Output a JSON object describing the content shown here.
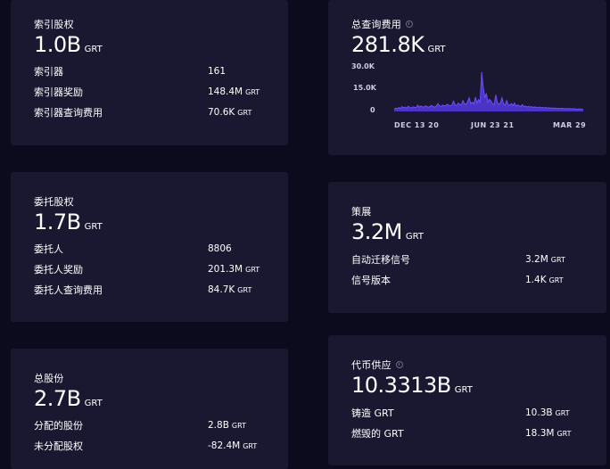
{
  "indexer_stake": {
    "title": "索引股权",
    "value": "1.0B",
    "unit": "GRT",
    "rows": [
      {
        "label": "索引器",
        "value": "161",
        "unit": ""
      },
      {
        "label": "索引器奖励",
        "value": "148.4M",
        "unit": "GRT"
      },
      {
        "label": "索引器查询费用",
        "value": "70.6K",
        "unit": "GRT"
      }
    ]
  },
  "delegator_stake": {
    "title": "委托股权",
    "value": "1.7B",
    "unit": "GRT",
    "rows": [
      {
        "label": "委托人",
        "value": "8806",
        "unit": ""
      },
      {
        "label": "委托人奖励",
        "value": "201.3M",
        "unit": "GRT"
      },
      {
        "label": "委托人查询费用",
        "value": "84.7K",
        "unit": "GRT"
      }
    ]
  },
  "total_stake": {
    "title": "总股份",
    "value": "2.7B",
    "unit": "GRT",
    "rows": [
      {
        "label": "分配的股份",
        "value": "2.8B",
        "unit": "GRT"
      },
      {
        "label": "未分配股权",
        "value": "-82.4M",
        "unit": "GRT"
      }
    ]
  },
  "query_fees": {
    "title": "总查询费用",
    "info_icon": "info-icon",
    "value": "281.8K",
    "unit": "GRT",
    "chart_data": {
      "type": "area",
      "y_ticks": [
        "30.0K",
        "15.0K",
        "0"
      ],
      "x_ticks": [
        "DEC 13 20",
        "JUN 23 21",
        "MAR 29"
      ],
      "ylim": [
        0,
        30000
      ],
      "color": "#6f4cff",
      "values": [
        1500,
        2200,
        1800,
        2600,
        2000,
        3200,
        2400,
        2900,
        2100,
        3500,
        2600,
        2300,
        3000,
        2700,
        2500,
        4200,
        2800,
        3600,
        3100,
        2900,
        3800,
        3300,
        2700,
        3400,
        4000,
        3200,
        2900,
        3600,
        5200,
        3800,
        3100,
        4300,
        3600,
        3900,
        4800,
        4100,
        3700,
        4500,
        6800,
        4200,
        3900,
        5600,
        4700,
        4300,
        7200,
        5100,
        4600,
        6400,
        9000,
        5200,
        6200,
        4800,
        9500,
        5600,
        7800,
        6000,
        26000,
        16000,
        9000,
        12000,
        6000,
        8000,
        6800,
        5200,
        4300,
        11000,
        6200,
        4600,
        5800,
        9000,
        5000,
        4200,
        7200,
        4600,
        4000,
        5200,
        3800,
        5600,
        3400,
        4300,
        3800,
        3100,
        4500,
        3200,
        3600,
        2900,
        3400,
        2800,
        3200,
        2600,
        3000,
        2700,
        2500,
        2900,
        2400,
        2700,
        2300,
        2600,
        2200,
        2500,
        2100,
        2400,
        2000,
        2300,
        1900,
        2200,
        1800,
        2100,
        2000,
        1900,
        1700,
        2000,
        1800,
        1900,
        1600,
        1800,
        1700,
        1500,
        1700,
        1600,
        1500,
        1400
      ]
    }
  },
  "curation": {
    "title": "策展",
    "value": "3.2M",
    "unit": "GRT",
    "rows": [
      {
        "label": "自动迁移信号",
        "value": "3.2M",
        "unit": "GRT"
      },
      {
        "label": "信号版本",
        "value": "1.4K",
        "unit": "GRT"
      }
    ]
  },
  "token_supply": {
    "title": "代币供应",
    "info_icon": "info-icon",
    "value": "10.3313B",
    "unit": "GRT",
    "rows": [
      {
        "label": "铸造 GRT",
        "value": "10.3B",
        "unit": "GRT"
      },
      {
        "label": "燃毁的 GRT",
        "value": "18.3M",
        "unit": "GRT"
      }
    ]
  }
}
